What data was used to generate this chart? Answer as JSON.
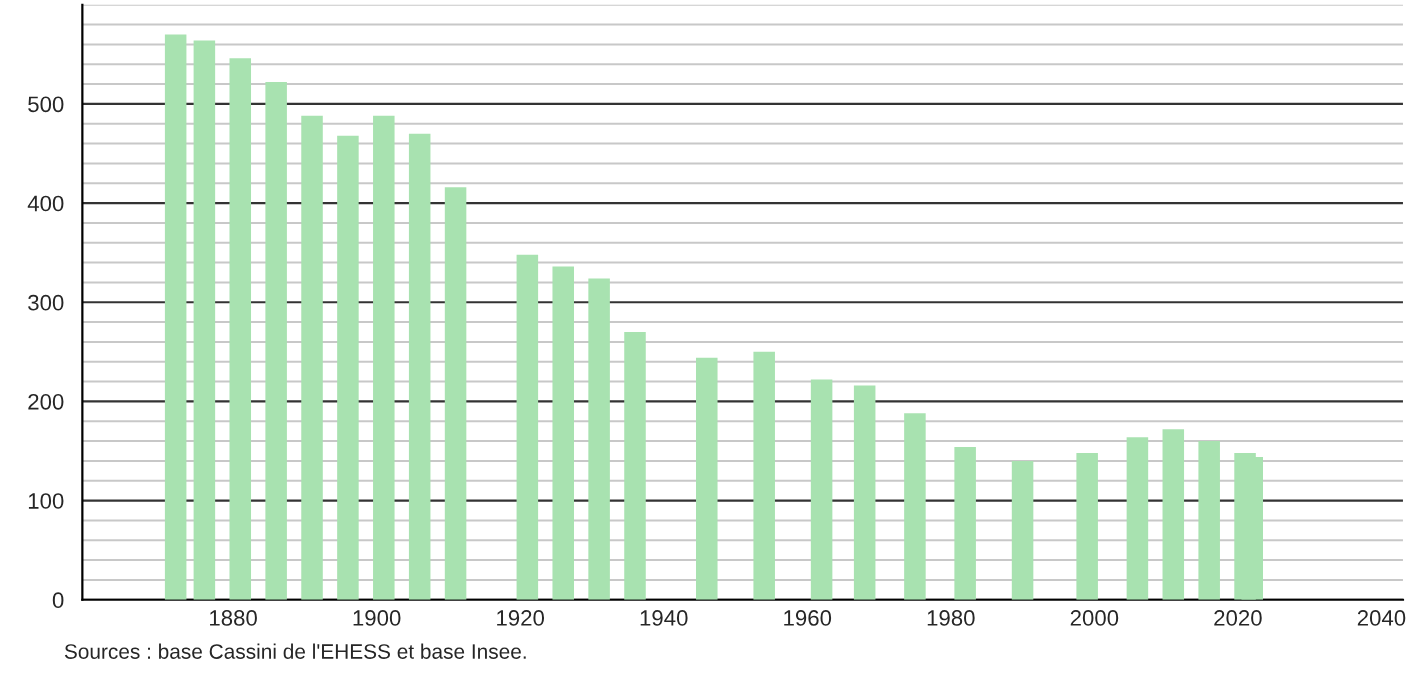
{
  "chart_data": {
    "type": "bar",
    "x": [
      1872,
      1876,
      1881,
      1886,
      1891,
      1896,
      1901,
      1906,
      1911,
      1921,
      1926,
      1931,
      1936,
      1946,
      1954,
      1962,
      1968,
      1975,
      1982,
      1990,
      1999,
      2006,
      2011,
      2016,
      2021,
      2022
    ],
    "values": [
      570,
      564,
      546,
      522,
      488,
      468,
      488,
      470,
      416,
      348,
      336,
      324,
      270,
      244,
      250,
      222,
      216,
      188,
      154,
      140,
      148,
      164,
      172,
      160,
      148,
      144
    ],
    "color": "#a8e2b0",
    "xlim": [
      1859,
      2043
    ],
    "xticks": [
      1880,
      1900,
      1920,
      1940,
      1960,
      1980,
      2000,
      2020,
      2040
    ],
    "ylim": [
      0,
      600
    ],
    "yticks": [
      0,
      {
        "value": 20,
        "label": null
      },
      {
        "value": 40,
        "label": null
      },
      {
        "value": 60,
        "label": null
      },
      {
        "value": 80,
        "label": null
      },
      100,
      {
        "value": 120,
        "label": null
      },
      {
        "value": 140,
        "label": null
      },
      {
        "value": 160,
        "label": null
      },
      {
        "value": 180,
        "label": null
      },
      200,
      {
        "value": 220,
        "label": null
      },
      {
        "value": 240,
        "label": null
      },
      {
        "value": 260,
        "label": null
      },
      {
        "value": 280,
        "label": null
      },
      300,
      {
        "value": 320,
        "label": null
      },
      {
        "value": 340,
        "label": null
      },
      {
        "value": 360,
        "label": null
      },
      {
        "value": 380,
        "label": null
      },
      400,
      {
        "value": 420,
        "label": null
      },
      {
        "value": 440,
        "label": null
      },
      {
        "value": 460,
        "label": null
      },
      {
        "value": 480,
        "label": null
      },
      500,
      {
        "value": 520,
        "label": null
      },
      {
        "value": 540,
        "label": null
      },
      {
        "value": 560,
        "label": null
      },
      {
        "value": 580,
        "label": null
      },
      {
        "value": 600,
        "label": null
      }
    ],
    "grid": "y",
    "annotations": [
      "Sources : base Cassini de l'EHESS et base Insee."
    ]
  }
}
